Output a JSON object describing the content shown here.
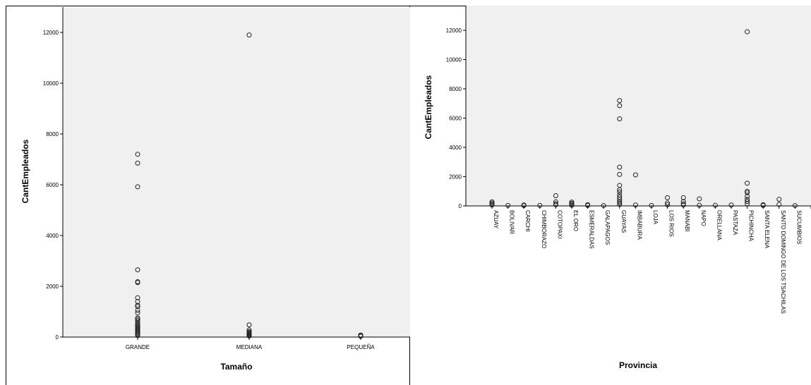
{
  "chart_data": [
    {
      "type": "scatter",
      "xlabel": "Tamaño",
      "ylabel": "CantEmpleados",
      "ylim": [
        0,
        13000
      ],
      "yticks": [
        0,
        2000,
        4000,
        6000,
        8000,
        10000,
        12000
      ],
      "categories": [
        "GRANDE",
        "MEDIANA",
        "PEQUEÑA"
      ],
      "points": [
        {
          "x": "GRANDE",
          "y": [
            7200,
            6850,
            5920,
            2650,
            2180,
            2150,
            1550,
            1400,
            1250,
            1200,
            1050,
            950,
            750,
            700,
            650,
            560,
            500,
            460,
            420,
            380,
            340,
            300,
            260,
            220,
            180,
            140,
            100,
            60
          ]
        },
        {
          "x": "MEDIANA",
          "y": [
            11900,
            480,
            280,
            220,
            180,
            150,
            120,
            90,
            60,
            40
          ]
        },
        {
          "x": "PEQUEÑA",
          "y": [
            80,
            50,
            30
          ]
        }
      ],
      "grid": false
    },
    {
      "type": "scatter",
      "xlabel": "Provincia",
      "ylabel": "CantEmpleados",
      "ylim": [
        0,
        12000
      ],
      "yticks": [
        0,
        2000,
        4000,
        6000,
        8000,
        10000,
        12000
      ],
      "categories": [
        "AZUAY",
        "BOLIVAR",
        "CARCHI",
        "CHIMBORAZO",
        "COTOPAXI",
        "EL ORO",
        "ESMERALDAS",
        "GALAPAGOS",
        "GUAYAS",
        "IMBABURA",
        "LOJA",
        "LOS RIOS",
        "MANABI",
        "NAPO",
        "ORELLANA",
        "PASTAZA",
        "PICHINCHA",
        "SANTA ELENA",
        "SANTO DOMINGO DE LOS TSACHILAS",
        "SUCUMBIOS",
        "TUNGURAHUA"
      ],
      "points": [
        {
          "x": "AZUAY",
          "y": [
            280,
            200,
            120,
            60
          ]
        },
        {
          "x": "BOLIVAR",
          "y": [
            30
          ]
        },
        {
          "x": "CARCHI",
          "y": [
            60,
            20
          ]
        },
        {
          "x": "CHIMBORAZO",
          "y": [
            30
          ]
        },
        {
          "x": "COTOPAXI",
          "y": [
            700,
            280,
            150,
            80
          ]
        },
        {
          "x": "EL ORO",
          "y": [
            260,
            180,
            100,
            40
          ]
        },
        {
          "x": "ESMERALDAS",
          "y": [
            80,
            30
          ]
        },
        {
          "x": "GALAPAGOS",
          "y": [
            20
          ]
        },
        {
          "x": "GUAYAS",
          "y": [
            7200,
            6850,
            5950,
            2650,
            2150,
            1400,
            1100,
            950,
            750,
            600,
            450,
            300,
            200,
            100
          ]
        },
        {
          "x": "IMBABURA",
          "y": [
            2120,
            60
          ]
        },
        {
          "x": "LOJA",
          "y": [
            30
          ]
        },
        {
          "x": "LOS RIOS",
          "y": [
            560,
            200,
            80
          ]
        },
        {
          "x": "MANABI",
          "y": [
            560,
            300,
            150,
            60
          ]
        },
        {
          "x": "NAPO",
          "y": [
            480,
            40
          ]
        },
        {
          "x": "ORELLANA",
          "y": [
            40
          ]
        },
        {
          "x": "PASTAZA",
          "y": [
            60
          ]
        },
        {
          "x": "PICHINCHA",
          "y": [
            11900,
            1550,
            1000,
            900,
            650,
            450,
            300,
            150
          ]
        },
        {
          "x": "SANTA ELENA",
          "y": [
            80,
            30
          ]
        },
        {
          "x": "SANTO DOMINGO DE LOS TSACHILAS",
          "y": [
            450,
            100
          ]
        },
        {
          "x": "SUCUMBIOS",
          "y": [
            20
          ]
        },
        {
          "x": "TUNGURAHUA",
          "y": [
            300,
            100
          ]
        }
      ],
      "grid": false
    }
  ]
}
